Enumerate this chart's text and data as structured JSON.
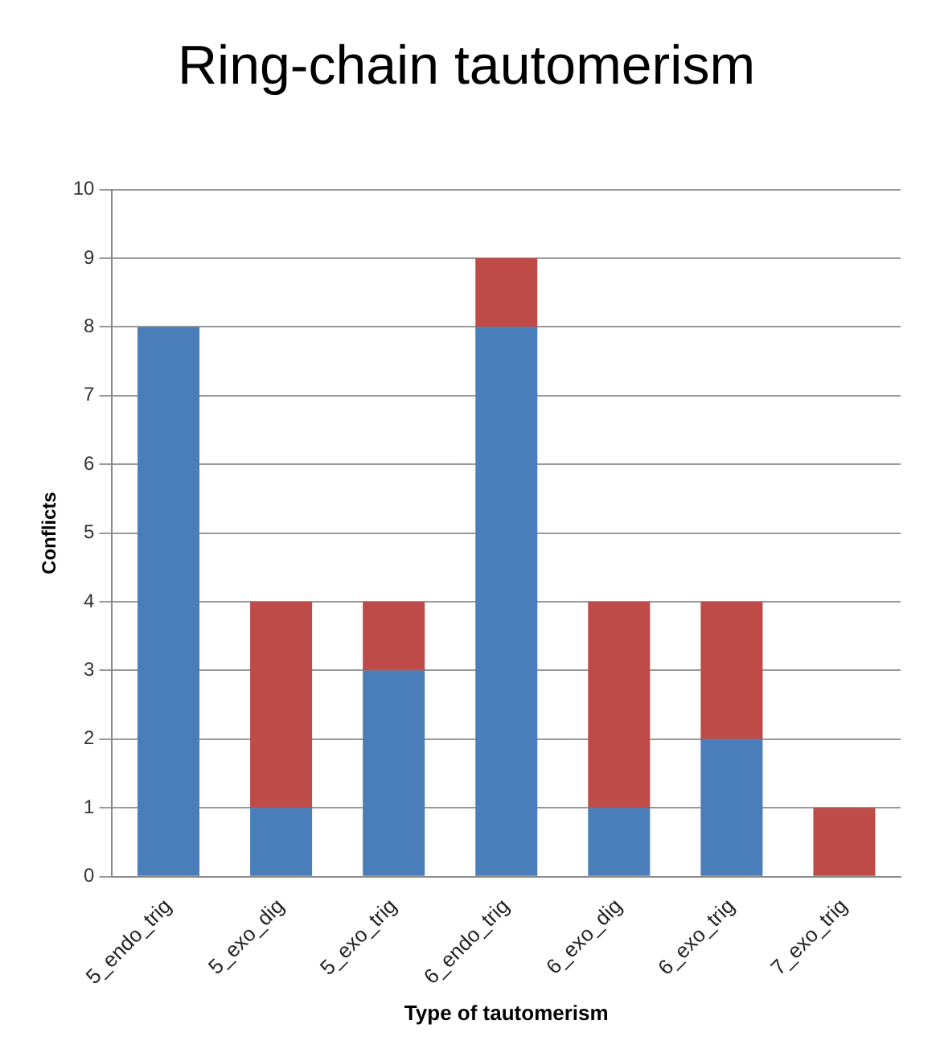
{
  "chart_data": {
    "type": "bar",
    "title": "Ring-chain tautomerism",
    "xlabel": "Type of tautomerism",
    "ylabel": "Conflicts",
    "categories": [
      "5_endo_trig",
      "5_exo_dig",
      "5_exo_trig",
      "6_endo_trig",
      "6_exo_dig",
      "6_exo_trig",
      "7_exo_trig"
    ],
    "series": [
      {
        "color": "#4a7ebb",
        "values": [
          8,
          1,
          3,
          8,
          1,
          2,
          0
        ]
      },
      {
        "color": "#be4b48",
        "values": [
          0,
          3,
          1,
          1,
          3,
          2,
          1
        ]
      }
    ],
    "stacked": true,
    "ylim": [
      0,
      10
    ],
    "yticks": [
      0,
      1,
      2,
      3,
      4,
      5,
      6,
      7,
      8,
      9,
      10
    ],
    "grid": "y",
    "legend": false
  }
}
